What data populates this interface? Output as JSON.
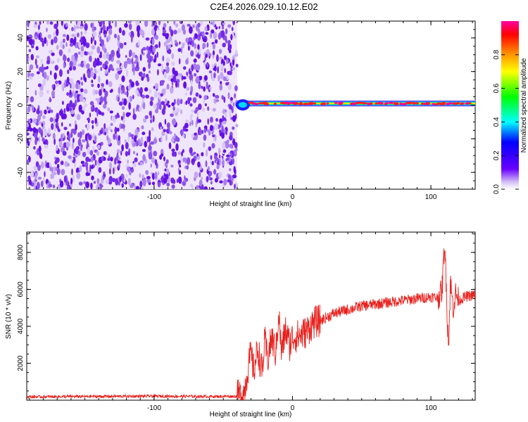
{
  "title": "C2E4.2026.029.10.12.E02",
  "chart_data": [
    {
      "type": "heatmap",
      "xlabel": "Height of straight line (km)",
      "ylabel": "Frequency (Hz)",
      "xlim": [
        -192,
        132
      ],
      "ylim": [
        -50,
        50
      ],
      "x_ticks": [
        -100,
        0,
        100
      ],
      "y_ticks": [
        -40,
        -20,
        0,
        20,
        40
      ],
      "colorbar": {
        "label": "Normalized spectral amplitude",
        "range": [
          0,
          1
        ],
        "ticks": [
          "0.0",
          "0.2",
          "0.4",
          "0.6",
          "0.8"
        ]
      },
      "features": {
        "noise_region_x": [
          -192,
          -40
        ],
        "signal_band_center_hz": 1,
        "signal_start_x": -40
      }
    },
    {
      "type": "line",
      "xlabel": "Height of straight line (km)",
      "ylabel": "SNR (10 * v/v)",
      "xlim": [
        -192,
        132
      ],
      "ylim": [
        0,
        9100
      ],
      "x_ticks": [
        -100,
        0,
        100
      ],
      "y_ticks": [
        2000,
        4000,
        6000,
        8000
      ],
      "series": [
        {
          "color": "#e8201c",
          "x": [
            -192,
            -150,
            -100,
            -60,
            -40,
            -35,
            -32,
            -30,
            -28,
            -25,
            -22,
            -20,
            -18,
            -15,
            -12,
            -10,
            -8,
            -5,
            -2,
            0,
            5,
            10,
            15,
            20,
            25,
            30,
            40,
            50,
            60,
            70,
            80,
            90,
            100,
            105,
            108,
            110,
            112,
            113,
            114,
            116,
            118,
            120,
            125,
            132
          ],
          "y": [
            180,
            200,
            220,
            200,
            210,
            400,
            1800,
            2500,
            1600,
            2800,
            1500,
            3200,
            2200,
            3400,
            2500,
            4800,
            2600,
            3800,
            3000,
            3400,
            3500,
            3700,
            4200,
            4300,
            4500,
            4700,
            4900,
            5100,
            5200,
            5300,
            5400,
            5500,
            5600,
            5550,
            5900,
            8600,
            4200,
            3000,
            6500,
            5000,
            5800,
            5400,
            5600,
            5700
          ]
        }
      ]
    }
  ]
}
